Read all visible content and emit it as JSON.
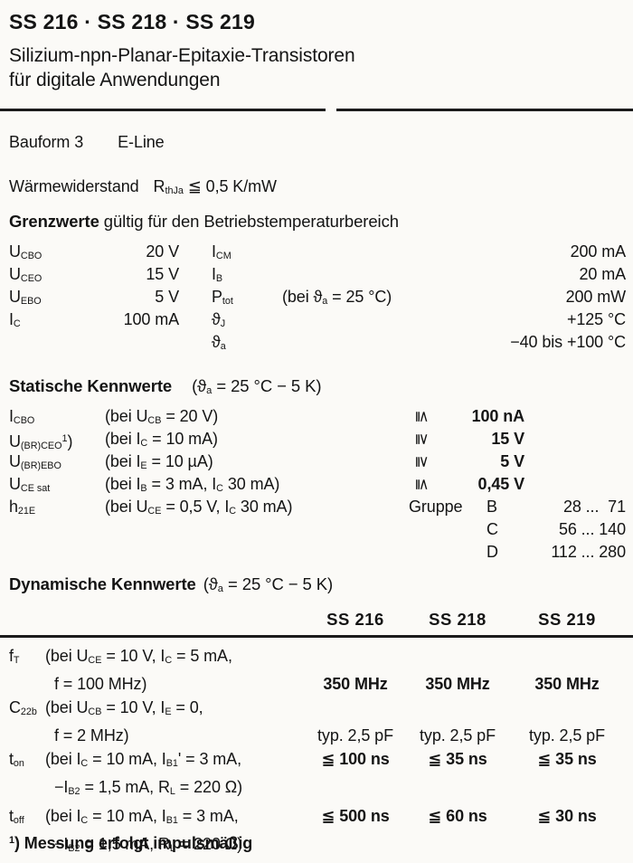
{
  "header": {
    "title": "SS 216 · SS 218 · SS 219",
    "subtitle_line1": "Silizium-npn-Planar-Epitaxie-Transistoren",
    "subtitle_line2": "für digitale Anwendungen"
  },
  "bauform": {
    "label": "Bauform 3",
    "value": "E-Line"
  },
  "thermal": {
    "label": "Wärmewiderstand",
    "formula": "R~thJa~ ≦ 0,5 K/mW"
  },
  "grenzwerte": {
    "heading_bold": "Grenzwerte",
    "heading_rest": " gültig für den Betriebstemperaturbereich",
    "rows": [
      {
        "sym1": "U~CBO~",
        "val1": "20 V",
        "sym2": "I~CM~",
        "cond": "",
        "val2": "200 mA"
      },
      {
        "sym1": "U~CEO~",
        "val1": "15 V",
        "sym2": "I~B~",
        "cond": "",
        "val2": "20 mA"
      },
      {
        "sym1": "U~EBO~",
        "val1": "5 V",
        "sym2": "P~tot~",
        "cond": "(bei ϑ~a~ = 25 °C)",
        "val2": "200 mW"
      },
      {
        "sym1": "I~C~",
        "val1": "100 mA",
        "sym2": "ϑ~J~",
        "cond": "",
        "val2": "+125 °C"
      },
      {
        "sym1": "",
        "val1": "",
        "sym2": "ϑ~a~",
        "cond": "",
        "val2": "−40 bis +100 °C"
      }
    ]
  },
  "statische": {
    "heading_bold": "Statische Kennwerte",
    "heading_rest": "(ϑ~a~ = 25 °C − 5 K)",
    "rows": [
      {
        "sym": "I~CBO~",
        "cond": "(bei U~CB~ = 20 V)",
        "cmp": "≦",
        "val": "100 nA"
      },
      {
        "sym": "U~(BR)CEO~^1^)",
        "cond": "(bei I~C~ = 10 mA)",
        "cmp": "≧",
        "val": "15 V"
      },
      {
        "sym": "U~(BR)EBO~",
        "cond": "(bei I~E~ = 10 µA)",
        "cmp": "≧",
        "val": "5 V"
      },
      {
        "sym": "U~CE sat~",
        "cond": "(bei I~B~ = 3 mA, I~C~ 30 mA)",
        "cmp": "≦",
        "val": "0,45 V"
      }
    ],
    "h21e": {
      "sym": "h~21E~",
      "cond": "(bei U~CE~ = 0,5 V, I~C~ 30 mA)",
      "group_label": "Gruppe",
      "groups": [
        {
          "letter": "B",
          "range": "28 ...  71"
        },
        {
          "letter": "C",
          "range": "56 ... 140"
        },
        {
          "letter": "D",
          "range": "112 ... 280"
        }
      ]
    }
  },
  "dynamische": {
    "heading_bold": "Dynamische Kennwerte",
    "heading_rest": "(ϑ~a~ = 25 °C − 5 K)",
    "columns": [
      "SS 216",
      "SS 218",
      "SS 219"
    ],
    "rows": [
      {
        "sym": "f~T~",
        "line1": "(bei U~CE~ = 10 V, I~C~ = 5 mA,",
        "line2": "f = 100 MHz)",
        "vals": [
          "350 MHz",
          "350 MHz",
          "350 MHz"
        ]
      },
      {
        "sym": "C~22b~",
        "line1": "(bei U~CB~ = 10 V, I~E~ = 0,",
        "line2": "f = 2 MHz)",
        "vals": [
          "typ. 2,5 pF",
          "typ. 2,5 pF",
          "typ. 2,5 pF"
        ]
      },
      {
        "sym": "t~on~",
        "line1": "(bei I~C~ = 10 mA, I~B1~' = 3 mA,",
        "line2": "−I~B2~ = 1,5 mA, R~L~ = 220 Ω)",
        "vals": [
          "≦ 100 ns",
          "≦ 35 ns",
          "≦ 35 ns"
        ]
      },
      {
        "sym": "t~off~",
        "line1": "(bei I~C~ = 10 mA, I~B1~ = 3 mA,",
        "line2": "−I~B2~ = 1,5 mA, R~L~ = 220 Ω)",
        "vals": [
          "≦ 500 ns",
          "≦ 60 ns",
          "≦ 30 ns"
        ]
      }
    ]
  },
  "footnote": "^1^) Messung erfolgt impulsmäßig"
}
